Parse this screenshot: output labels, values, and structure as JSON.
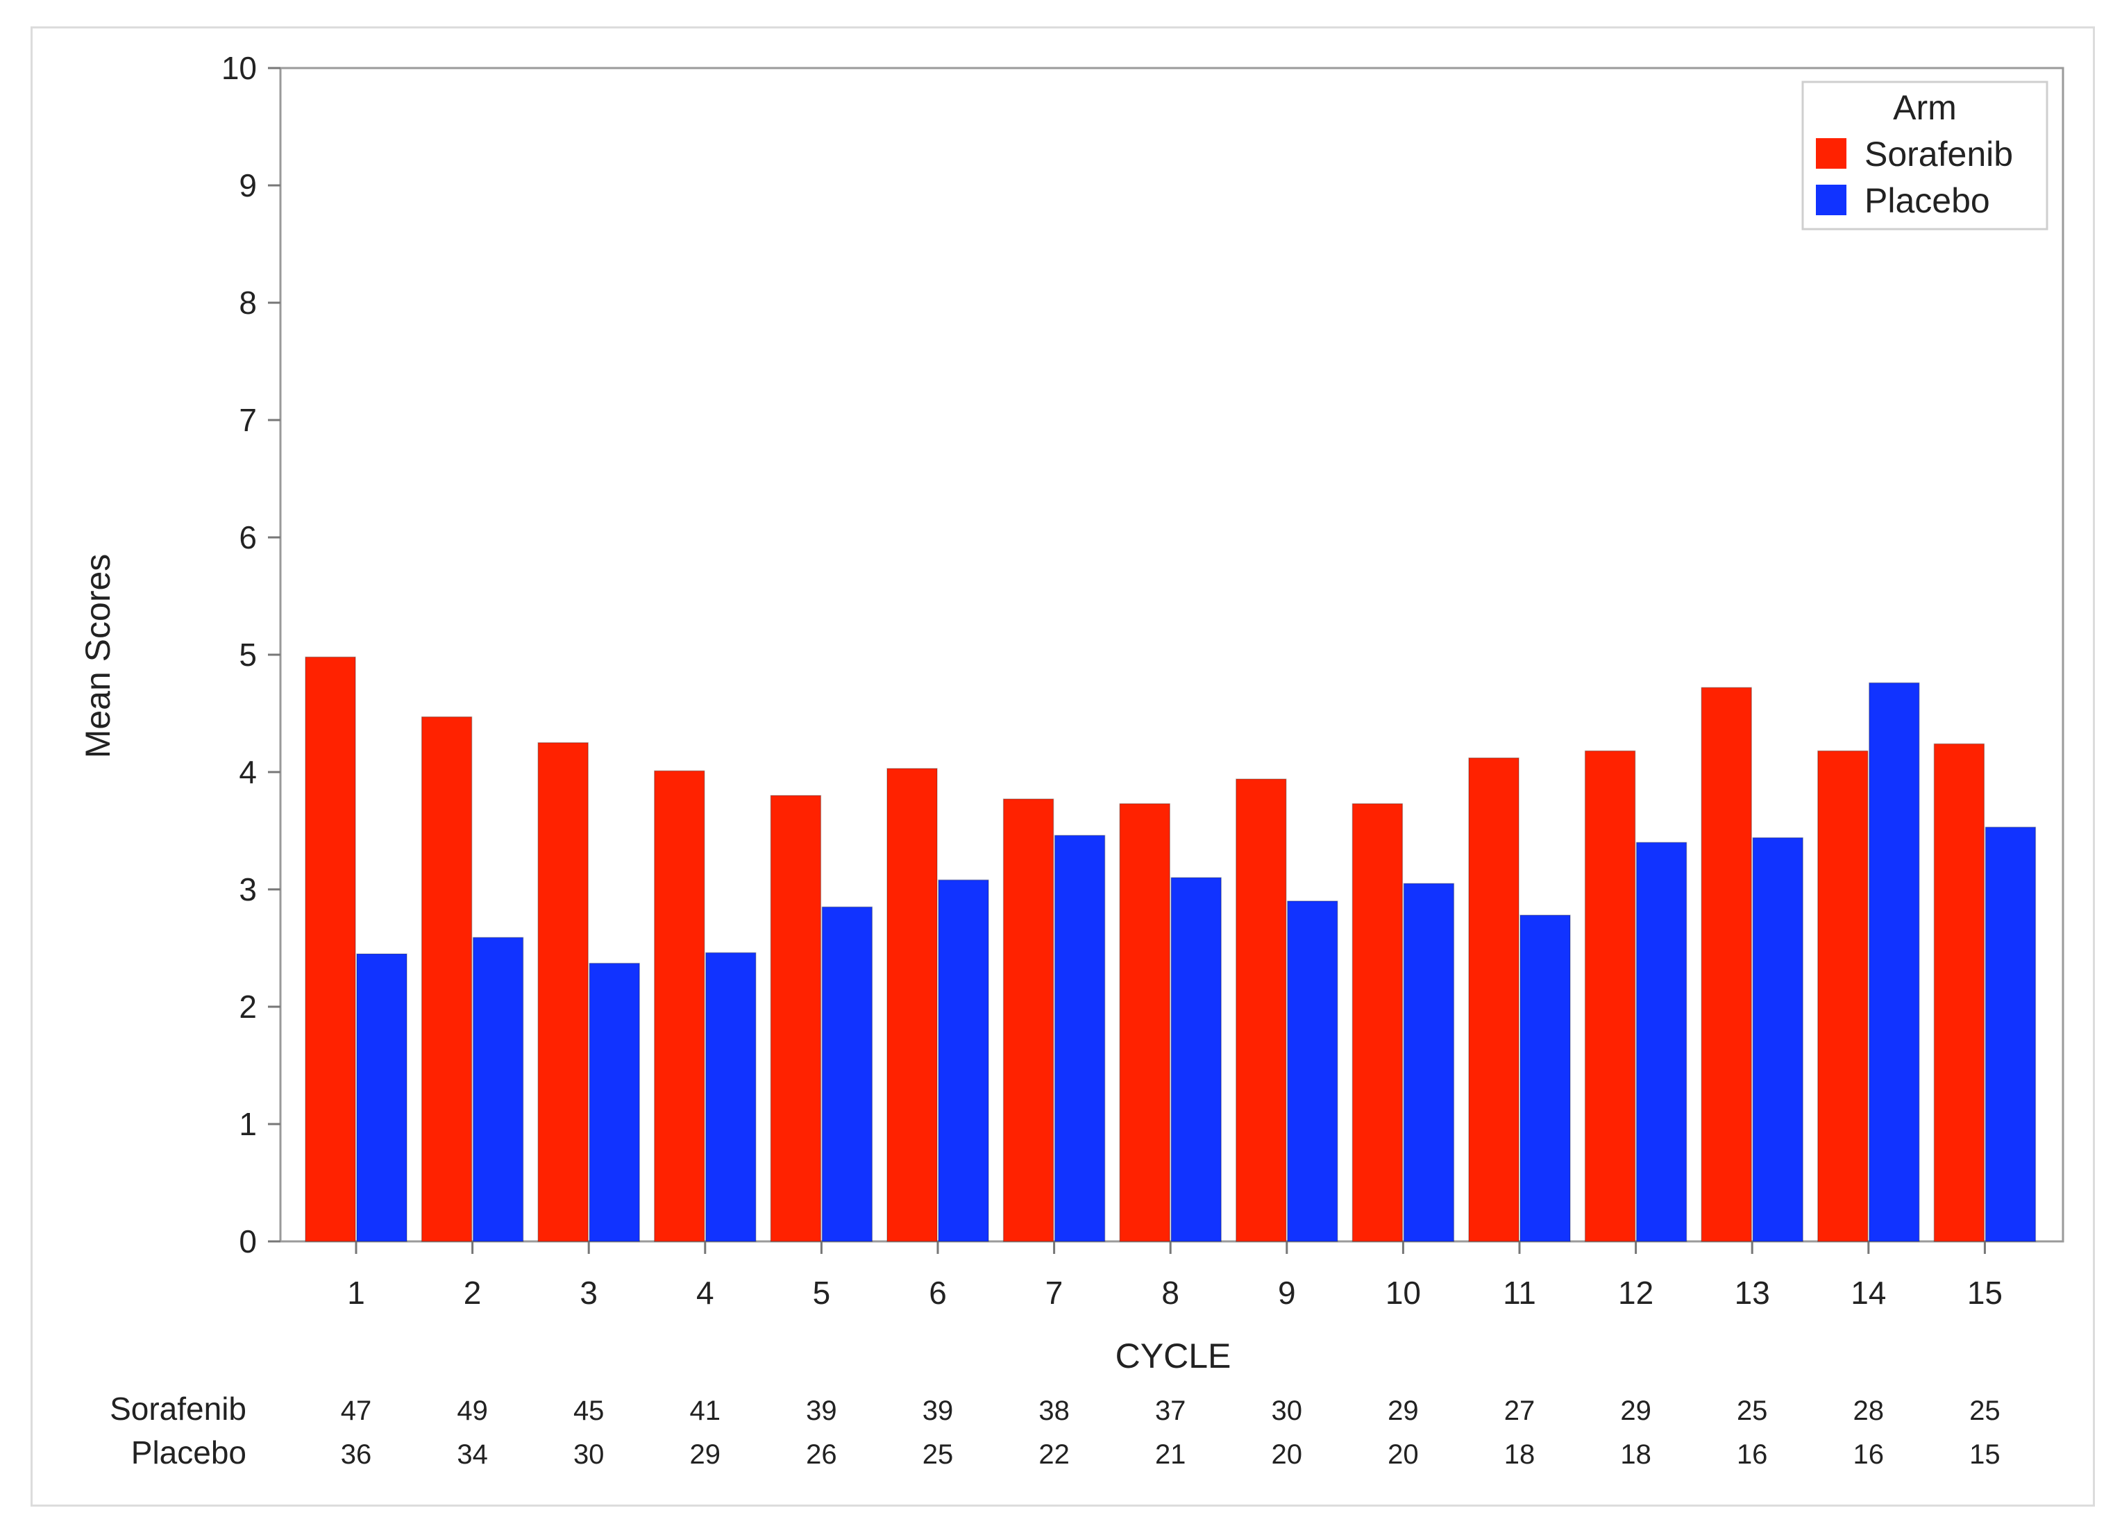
{
  "chart_data": {
    "type": "bar",
    "xlabel": "CYCLE",
    "ylabel": "Mean Scores",
    "ylim": [
      0,
      10
    ],
    "yticks": [
      "0",
      "1",
      "2",
      "3",
      "4",
      "5",
      "6",
      "7",
      "8",
      "9",
      "10"
    ],
    "categories": [
      "1",
      "2",
      "3",
      "4",
      "5",
      "6",
      "7",
      "8",
      "9",
      "10",
      "11",
      "12",
      "13",
      "14",
      "15"
    ],
    "legend": {
      "title": "Arm",
      "position": "top-right"
    },
    "series": [
      {
        "name": "Sorafenib",
        "color": "#ff2200",
        "values": [
          4.98,
          4.47,
          4.25,
          4.01,
          3.8,
          4.03,
          3.77,
          3.73,
          3.94,
          3.73,
          4.12,
          4.18,
          4.72,
          4.18,
          4.24
        ]
      },
      {
        "name": "Placebo",
        "color": "#1133ff",
        "values": [
          2.45,
          2.59,
          2.37,
          2.46,
          2.85,
          3.08,
          3.46,
          3.1,
          2.9,
          3.05,
          2.78,
          3.4,
          3.44,
          4.76,
          3.53
        ]
      }
    ],
    "risk_table": [
      {
        "name": "Sorafenib",
        "counts": [
          "47",
          "49",
          "45",
          "41",
          "39",
          "39",
          "38",
          "37",
          "30",
          "29",
          "27",
          "29",
          "25",
          "28",
          "25"
        ]
      },
      {
        "name": "Placebo",
        "counts": [
          "36",
          "34",
          "30",
          "29",
          "26",
          "25",
          "22",
          "21",
          "20",
          "20",
          "18",
          "18",
          "16",
          "16",
          "15"
        ]
      }
    ]
  }
}
